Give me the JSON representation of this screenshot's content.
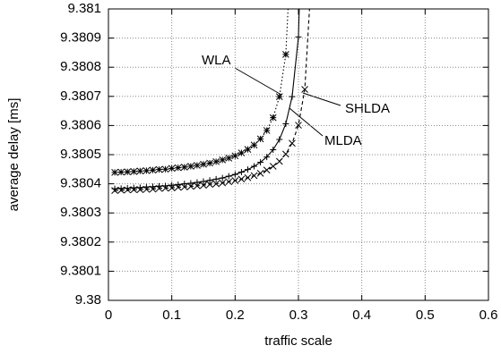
{
  "chart_data": {
    "type": "line",
    "xlabel": "traffic scale",
    "ylabel": "average delay [ms]",
    "xlim": [
      0,
      0.6
    ],
    "xticks": [
      0,
      0.1,
      0.2,
      0.3,
      0.4,
      0.5,
      0.6
    ],
    "ylim": [
      9.38,
      9.381
    ],
    "yticks": [
      9.38,
      9.3801,
      9.3802,
      9.3803,
      9.3804,
      9.3805,
      9.3806,
      9.3807,
      9.3808,
      9.3809,
      9.381
    ],
    "grid": true,
    "series": [
      {
        "name": "WLA",
        "color": "#000000",
        "marker": "asterisk",
        "line_style": "dotted",
        "x": [
          0.01,
          0.02,
          0.03,
          0.04,
          0.05,
          0.06,
          0.07,
          0.08,
          0.09,
          0.1,
          0.11,
          0.12,
          0.13,
          0.14,
          0.15,
          0.16,
          0.17,
          0.18,
          0.19,
          0.2,
          0.21,
          0.22,
          0.23,
          0.24,
          0.25,
          0.26,
          0.27,
          0.28,
          0.29
        ],
        "values": [
          9.380439,
          9.38044,
          9.380441,
          9.380442,
          9.380444,
          9.380445,
          9.380447,
          9.380449,
          9.38045,
          9.380453,
          9.380455,
          9.380457,
          9.38046,
          9.380463,
          9.380467,
          9.380471,
          9.380476,
          9.380482,
          9.380488,
          9.380496,
          9.380506,
          9.380518,
          9.380533,
          9.380554,
          9.380583,
          9.380627,
          9.380699,
          9.380844,
          9.381279
        ]
      },
      {
        "name": "MLDA",
        "color": "#000000",
        "marker": "plus",
        "line_style": "solid",
        "x": [
          0.01,
          0.02,
          0.03,
          0.04,
          0.05,
          0.06,
          0.07,
          0.08,
          0.09,
          0.1,
          0.11,
          0.12,
          0.13,
          0.14,
          0.15,
          0.16,
          0.17,
          0.18,
          0.19,
          0.2,
          0.21,
          0.22,
          0.23,
          0.24,
          0.25,
          0.26,
          0.27,
          0.28,
          0.29,
          0.3,
          0.31
        ],
        "values": [
          9.380383,
          9.380384,
          9.380385,
          9.380386,
          9.380387,
          9.380389,
          9.38039,
          9.380392,
          9.380393,
          9.380395,
          9.380397,
          9.3804,
          9.380402,
          9.380405,
          9.380408,
          9.380412,
          9.380416,
          9.38042,
          9.380426,
          9.380432,
          9.38044,
          9.380449,
          9.38046,
          9.380474,
          9.380492,
          9.380517,
          9.380552,
          9.380606,
          9.380699,
          9.380904,
          9.381692
        ]
      },
      {
        "name": "SHLDA",
        "color": "#000000",
        "marker": "cross",
        "line_style": "dashed",
        "x": [
          0.01,
          0.02,
          0.03,
          0.04,
          0.05,
          0.06,
          0.07,
          0.08,
          0.09,
          0.1,
          0.11,
          0.12,
          0.13,
          0.14,
          0.15,
          0.16,
          0.17,
          0.18,
          0.19,
          0.2,
          0.21,
          0.22,
          0.23,
          0.24,
          0.25,
          0.26,
          0.27,
          0.28,
          0.29,
          0.3,
          0.31,
          0.32
        ],
        "values": [
          9.380377,
          9.380378,
          9.380379,
          9.38038,
          9.38038,
          9.380381,
          9.380382,
          9.380384,
          9.380385,
          9.380386,
          9.380388,
          9.380389,
          9.380391,
          9.380393,
          9.380395,
          9.380398,
          9.3804,
          9.380403,
          9.380407,
          9.380411,
          9.380416,
          9.380421,
          9.380428,
          9.380436,
          9.380447,
          9.38046,
          9.380477,
          9.380502,
          9.380539,
          9.380601,
          9.380724,
          9.381094
        ]
      }
    ]
  }
}
